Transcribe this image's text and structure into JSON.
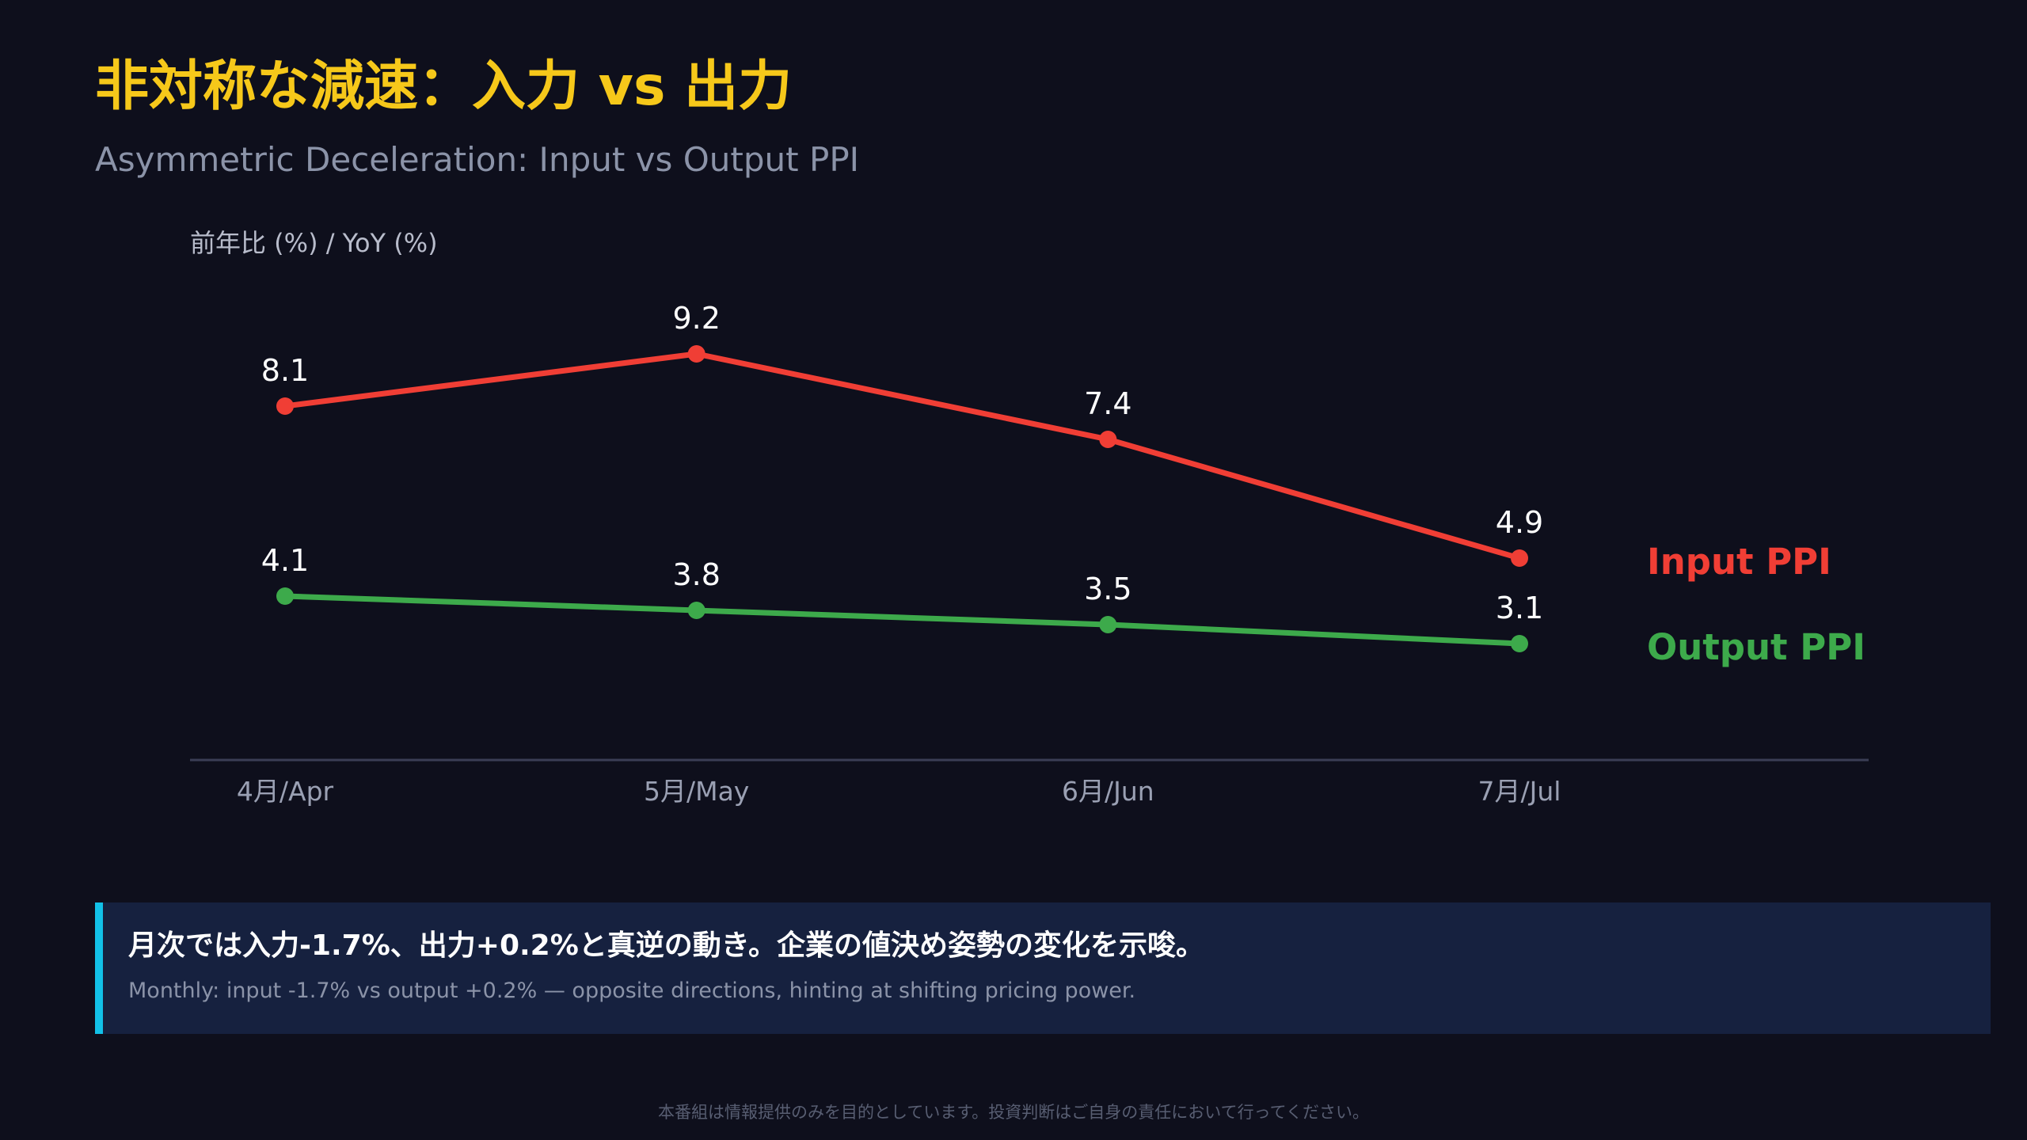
{
  "header": {
    "title": "非対称な減速：入力 vs 出力",
    "subtitle": "Asymmetric Deceleration: Input vs Output PPI"
  },
  "chart_data": {
    "type": "line",
    "ylabel": "前年比 (%) / YoY (%)",
    "categories": [
      "4月/Apr",
      "5月/May",
      "6月/Jun",
      "7月/Jul"
    ],
    "series": [
      {
        "name": "Input PPI",
        "values": [
          8.1,
          9.2,
          7.4,
          4.9
        ],
        "color": "#f03e35"
      },
      {
        "name": "Output PPI",
        "values": [
          4.1,
          3.8,
          3.5,
          3.1
        ],
        "color": "#3daa4b"
      }
    ],
    "grid": false,
    "legend": "right, at end of each line"
  },
  "callout": {
    "main": "月次では入力-1.7%、出力+0.2%と真逆の動き。企業の値決め姿勢の変化を示唆。",
    "sub": "Monthly: input -1.7% vs output +0.2% — opposite directions, hinting at shifting pricing power."
  },
  "footer": {
    "disclaimer": "本番組は情報提供のみを目的としています。投資判断はご自身の責任において行ってください。"
  },
  "colors": {
    "background": "#0e0f1c",
    "title": "#f6c81a",
    "accent": "#12c1e8",
    "callout_bg": "#16213f"
  }
}
